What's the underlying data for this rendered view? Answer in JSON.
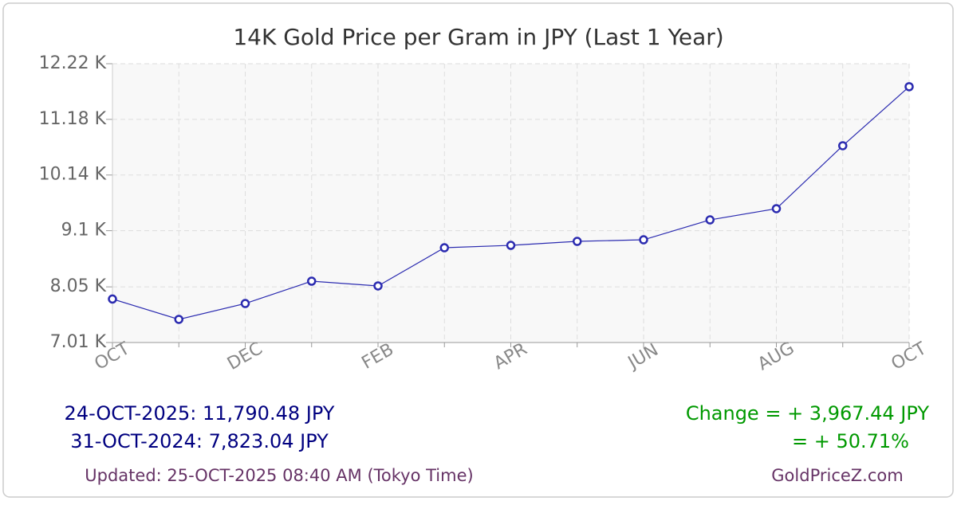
{
  "chart_data": {
    "type": "line",
    "title": "14K Gold Price per Gram in JPY (Last 1 Year)",
    "categories": [
      "OCT",
      null,
      "DEC",
      null,
      "FEB",
      null,
      "APR",
      null,
      "JUN",
      null,
      "AUG",
      null,
      "OCT"
    ],
    "series": [
      {
        "name": "14K Gold Price per Gram in JPY",
        "color": "#2b2bb0",
        "values": [
          7823.04,
          7442,
          7739,
          8156,
          8067,
          8781,
          8826,
          8900,
          8930,
          9302,
          9511,
          10687,
          11790.48
        ]
      }
    ],
    "ylim": [
      7010,
      12220
    ],
    "yticks": [
      {
        "value": 7010,
        "label": "7.01 K"
      },
      {
        "value": 8050,
        "label": "8.05 K"
      },
      {
        "value": 9100,
        "label": "9.1 K"
      },
      {
        "value": 10140,
        "label": "10.14 K"
      },
      {
        "value": 11180,
        "label": "11.18 K"
      },
      {
        "value": 12220,
        "label": "12.22 K"
      }
    ],
    "grid": true
  },
  "summary": {
    "latest": "24-OCT-2025: 11,790.48 JPY",
    "earliest": "31-OCT-2024: 7,823.04 JPY",
    "change": "Change = + 3,967.44 JPY",
    "change_pct": "= + 50.71%",
    "updated": "Updated: 25-OCT-2025 08:40 AM (Tokyo Time)",
    "site": "GoldPriceZ.com"
  }
}
